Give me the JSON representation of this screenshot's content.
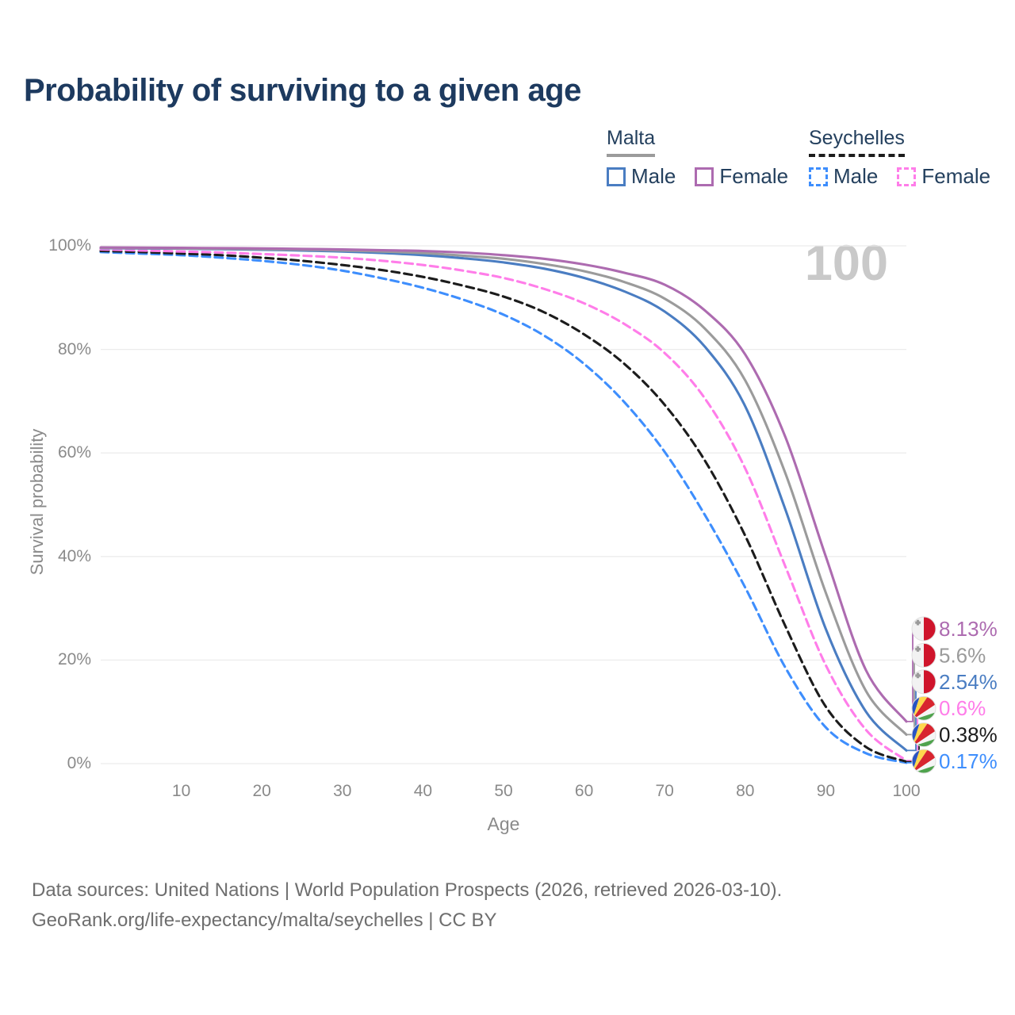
{
  "title": "Probability of surviving to a given age",
  "legend": {
    "groups": [
      {
        "name": "Malta",
        "line_style": "solid",
        "underline_color": "#9b9b9b",
        "items": [
          {
            "label": "Male",
            "color": "#4a7dc2"
          },
          {
            "label": "Female",
            "color": "#ad6bb0"
          }
        ]
      },
      {
        "name": "Seychelles",
        "line_style": "dashed",
        "underline_color": "#1c1c1c",
        "items": [
          {
            "label": "Male",
            "color": "#3e8efd"
          },
          {
            "label": "Female",
            "color": "#ff7de9"
          }
        ]
      }
    ]
  },
  "hover_age_label": "100",
  "chart_data": {
    "type": "line",
    "title": "Probability of surviving to a given age",
    "xlabel": "Age",
    "ylabel": "Survival probability",
    "xlim": [
      0,
      100
    ],
    "ylim": [
      0,
      100
    ],
    "x_ticks": [
      10,
      20,
      30,
      40,
      50,
      60,
      70,
      80,
      90,
      100
    ],
    "y_ticks": [
      {
        "value": 0,
        "label": "0%"
      },
      {
        "value": 20,
        "label": "20%"
      },
      {
        "value": 40,
        "label": "40%"
      },
      {
        "value": 60,
        "label": "60%"
      },
      {
        "value": 80,
        "label": "80%"
      },
      {
        "value": 100,
        "label": "100%"
      }
    ],
    "grid": "horizontal",
    "legend_position": "top-right",
    "x": [
      0,
      5,
      10,
      15,
      20,
      25,
      30,
      35,
      40,
      45,
      50,
      55,
      60,
      65,
      70,
      75,
      80,
      85,
      90,
      95,
      100
    ],
    "series": [
      {
        "name": "Seychelles Male",
        "country": "seychelles",
        "sex": "male",
        "style": "dashed",
        "color": "#3e8efd",
        "end_label": "0.17%",
        "values": [
          98.8,
          98.5,
          98.2,
          97.7,
          97.1,
          96.3,
          95.2,
          93.7,
          91.9,
          89.6,
          86.7,
          82.7,
          77.2,
          69.8,
          60.2,
          48.0,
          34.0,
          18.5,
          7.0,
          2.0,
          0.17
        ]
      },
      {
        "name": "Seychelles",
        "country": "seychelles",
        "sex": "both",
        "style": "dashed",
        "color": "#1c1c1c",
        "end_label": "0.38%",
        "values": [
          99.0,
          98.8,
          98.5,
          98.2,
          97.7,
          97.1,
          96.3,
          95.3,
          94.0,
          92.3,
          90.2,
          87.2,
          82.9,
          77.2,
          69.3,
          58.5,
          44.0,
          26.5,
          11.0,
          3.2,
          0.38
        ]
      },
      {
        "name": "Seychelles Female",
        "country": "seychelles",
        "sex": "female",
        "style": "dashed",
        "color": "#ff7de9",
        "end_label": "0.6%",
        "values": [
          99.3,
          99.1,
          98.9,
          98.7,
          98.4,
          98.1,
          97.7,
          97.1,
          96.3,
          95.2,
          93.8,
          91.7,
          88.9,
          84.9,
          79.3,
          70.5,
          57.0,
          38.0,
          19.0,
          6.5,
          0.6
        ]
      },
      {
        "name": "Malta Male",
        "country": "malta",
        "sex": "male",
        "style": "solid",
        "color": "#4a7dc2",
        "end_label": "2.54%",
        "values": [
          99.55,
          99.5,
          99.45,
          99.35,
          99.25,
          99.1,
          98.9,
          98.6,
          98.2,
          97.6,
          96.8,
          95.6,
          93.8,
          91.2,
          87.3,
          80.5,
          69.0,
          49.0,
          26.0,
          10.0,
          2.54
        ]
      },
      {
        "name": "Malta",
        "country": "malta",
        "sex": "both",
        "style": "solid",
        "color": "#9b9b9b",
        "end_label": "5.6%",
        "values": [
          99.6,
          99.55,
          99.5,
          99.45,
          99.35,
          99.25,
          99.1,
          98.9,
          98.6,
          98.1,
          97.5,
          96.5,
          95.1,
          93.0,
          89.8,
          84.0,
          74.0,
          56.0,
          33.0,
          14.0,
          5.6
        ]
      },
      {
        "name": "Malta Female",
        "country": "malta",
        "sex": "female",
        "style": "solid",
        "color": "#ad6bb0",
        "end_label": "8.13%",
        "values": [
          99.7,
          99.65,
          99.6,
          99.55,
          99.5,
          99.4,
          99.3,
          99.15,
          99.0,
          98.7,
          98.2,
          97.5,
          96.4,
          94.8,
          92.5,
          87.5,
          79.0,
          63.0,
          40.0,
          18.0,
          8.13
        ]
      }
    ]
  },
  "flags": {
    "malta": {
      "white": "#f2f2f2",
      "red": "#cf142b",
      "cross": "#9b9b9b"
    },
    "seychelles": {
      "blue": "#2853c3",
      "yellow": "#ffd84d",
      "red": "#d8252f",
      "white": "#f5f5f5",
      "green": "#4fa34d"
    }
  },
  "colors": {
    "title_text": "#1d3a5f",
    "axis_text": "#8a8a8a",
    "gridline": "#ececec",
    "hover_age_text": "#c9c9c9",
    "footer_text": "#6e6e6e"
  },
  "footer": {
    "line1": "Data sources: United Nations | World Population Prospects (2026, retrieved 2026-03-10).",
    "line2": "GeoRank.org/life-expectancy/malta/seychelles | CC BY"
  }
}
